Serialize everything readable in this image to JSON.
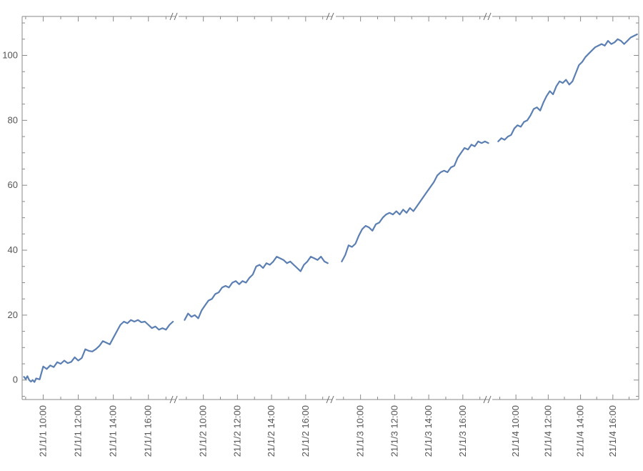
{
  "chart_data": {
    "type": "line",
    "title": "",
    "xlabel": "",
    "ylabel": "",
    "ylim": [
      -6,
      112
    ],
    "y_ticks": [
      0,
      20,
      40,
      60,
      80,
      100
    ],
    "y_tick_labels": [
      "0",
      "20",
      "40",
      "60",
      "80",
      "100"
    ],
    "x_axis_breaks": true,
    "grid": false,
    "line_color": "#5b7fb2",
    "segments": [
      {
        "hour_range": [
          8.8,
          17.6
        ],
        "tick_hours": [
          10,
          12,
          14,
          16
        ],
        "tick_labels": [
          "21/1/1 10:00",
          "21/1/1 12:00",
          "21/1/1 14:00",
          "21/1/1 16:00"
        ],
        "x_hours": [
          8.9,
          9.0,
          9.1,
          9.2,
          9.3,
          9.4,
          9.5,
          9.6,
          9.8,
          10.0,
          10.2,
          10.4,
          10.6,
          10.8,
          11.0,
          11.2,
          11.4,
          11.6,
          11.8,
          12.0,
          12.2,
          12.4,
          12.6,
          12.8,
          13.0,
          13.2,
          13.4,
          13.6,
          13.8,
          14.0,
          14.2,
          14.4,
          14.6,
          14.8,
          15.0,
          15.2,
          15.4,
          15.6,
          15.8,
          16.0,
          16.2,
          16.4,
          16.6,
          16.8,
          17.0,
          17.2,
          17.4
        ],
        "y": [
          1.0,
          0.3,
          1.2,
          0.0,
          -0.5,
          0.0,
          -0.6,
          0.5,
          0.2,
          4.2,
          3.4,
          4.5,
          4.0,
          5.5,
          5.0,
          6.0,
          5.2,
          5.6,
          7.0,
          6.0,
          6.8,
          9.5,
          9.0,
          8.8,
          9.5,
          10.5,
          12.0,
          11.5,
          11.0,
          13.0,
          15.0,
          17.0,
          18.0,
          17.5,
          18.5,
          18.0,
          18.5,
          17.8,
          18.0,
          17.0,
          16.0,
          16.5,
          15.5,
          16.0,
          15.5,
          17.0,
          18.0
        ]
      },
      {
        "hour_range": [
          8.8,
          17.6
        ],
        "tick_hours": [
          10,
          12,
          14,
          16
        ],
        "tick_labels": [
          "21/1/2 10:00",
          "21/1/2 12:00",
          "21/1/2 14:00",
          "21/1/2 16:00"
        ],
        "x_hours": [
          8.9,
          9.1,
          9.3,
          9.5,
          9.7,
          9.9,
          10.1,
          10.3,
          10.5,
          10.7,
          10.9,
          11.1,
          11.3,
          11.5,
          11.7,
          11.9,
          12.1,
          12.3,
          12.5,
          12.7,
          12.9,
          13.1,
          13.3,
          13.5,
          13.7,
          13.9,
          14.1,
          14.3,
          14.5,
          14.7,
          14.9,
          15.1,
          15.3,
          15.5,
          15.7,
          15.9,
          16.1,
          16.3,
          16.5,
          16.7,
          16.9,
          17.1,
          17.3
        ],
        "y": [
          18.5,
          20.5,
          19.5,
          20.0,
          19.0,
          21.5,
          23.0,
          24.5,
          25.0,
          26.5,
          27.0,
          28.5,
          29.0,
          28.5,
          30.0,
          30.5,
          29.5,
          30.5,
          30.0,
          31.5,
          32.5,
          35.0,
          35.5,
          34.5,
          36.0,
          35.5,
          36.5,
          38.0,
          37.5,
          37.0,
          36.0,
          36.5,
          35.5,
          34.5,
          33.5,
          35.5,
          36.5,
          38.0,
          37.5,
          37.0,
          38.0,
          36.5,
          36.0
        ]
      },
      {
        "hour_range": [
          8.8,
          17.6
        ],
        "tick_hours": [
          10,
          12,
          14,
          16
        ],
        "tick_labels": [
          "21/1/3 10:00",
          "21/1/3 12:00",
          "21/1/3 14:00",
          "21/1/3 16:00"
        ],
        "x_hours": [
          8.9,
          9.1,
          9.3,
          9.5,
          9.7,
          9.9,
          10.1,
          10.3,
          10.5,
          10.7,
          10.9,
          11.1,
          11.3,
          11.5,
          11.7,
          11.9,
          12.1,
          12.3,
          12.5,
          12.7,
          12.9,
          13.1,
          13.3,
          13.5,
          13.7,
          13.9,
          14.1,
          14.3,
          14.5,
          14.7,
          14.9,
          15.1,
          15.3,
          15.5,
          15.7,
          15.9,
          16.1,
          16.3,
          16.5,
          16.7,
          16.9,
          17.1,
          17.3,
          17.5
        ],
        "y": [
          36.5,
          38.5,
          41.5,
          41.0,
          42.0,
          44.5,
          46.5,
          47.5,
          47.0,
          46.0,
          48.0,
          48.5,
          50.0,
          51.0,
          51.5,
          51.0,
          52.0,
          51.0,
          52.5,
          51.5,
          53.0,
          52.0,
          53.5,
          55.0,
          56.5,
          58.0,
          59.5,
          61.0,
          63.0,
          64.0,
          64.5,
          64.0,
          65.5,
          66.0,
          68.5,
          70.0,
          71.5,
          71.0,
          72.5,
          72.0,
          73.5,
          73.0,
          73.5,
          73.0
        ]
      },
      {
        "hour_range": [
          8.8,
          17.6
        ],
        "tick_hours": [
          10,
          12,
          14,
          16
        ],
        "tick_labels": [
          "21/1/4 10:00",
          "21/1/4 12:00",
          "21/1/4 14:00",
          "21/1/4 16:00"
        ],
        "x_hours": [
          8.9,
          9.1,
          9.3,
          9.5,
          9.7,
          9.9,
          10.1,
          10.3,
          10.5,
          10.7,
          10.9,
          11.1,
          11.3,
          11.5,
          11.7,
          11.9,
          12.1,
          12.3,
          12.5,
          12.7,
          12.9,
          13.1,
          13.3,
          13.5,
          13.7,
          13.9,
          14.1,
          14.3,
          14.5,
          14.7,
          14.9,
          15.1,
          15.3,
          15.5,
          15.7,
          15.9,
          16.1,
          16.3,
          16.5,
          16.7,
          16.9,
          17.1,
          17.3,
          17.5
        ],
        "y": [
          73.5,
          74.5,
          74.0,
          75.0,
          75.5,
          77.5,
          78.5,
          78.0,
          79.5,
          80.0,
          81.5,
          83.5,
          84.0,
          83.0,
          85.5,
          87.5,
          89.0,
          88.0,
          90.5,
          92.0,
          91.5,
          92.5,
          91.0,
          92.0,
          94.5,
          97.0,
          98.0,
          99.5,
          100.5,
          101.5,
          102.5,
          103.0,
          103.5,
          103.0,
          104.5,
          103.5,
          104.0,
          105.0,
          104.5,
          103.5,
          104.5,
          105.5,
          106.0,
          106.5
        ]
      }
    ]
  }
}
